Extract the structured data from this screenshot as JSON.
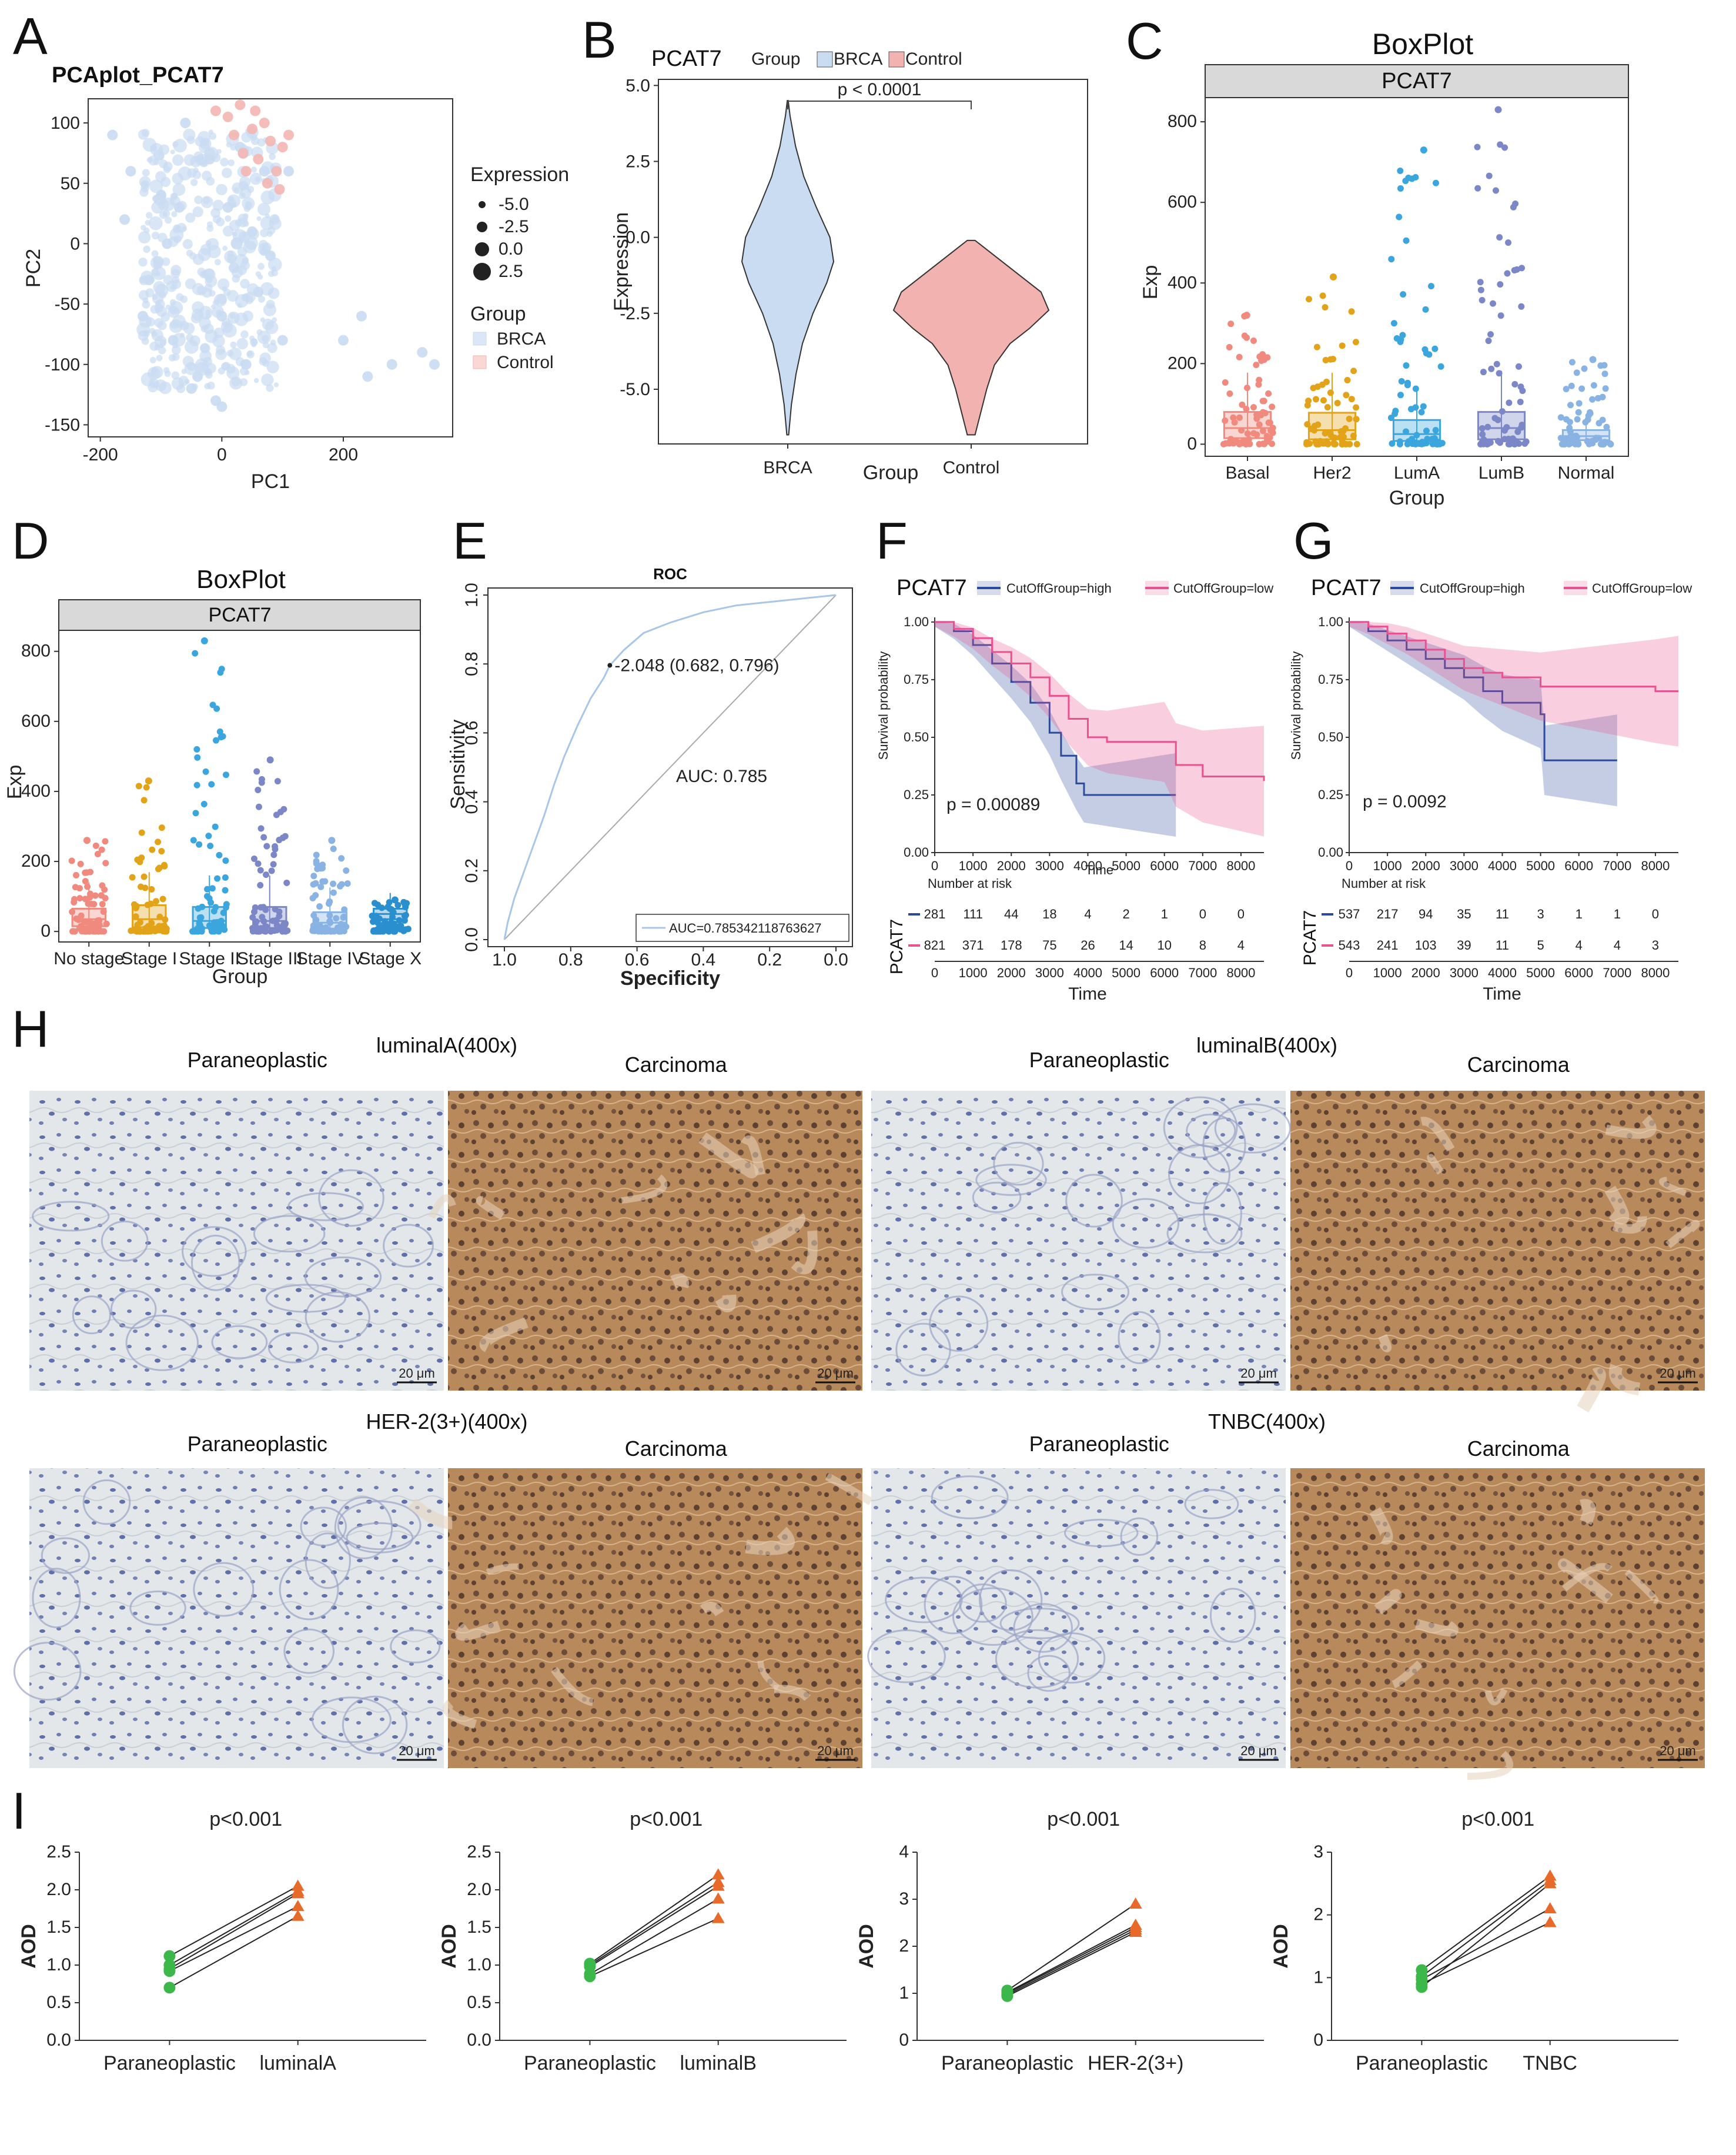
{
  "panel_letters": {
    "A": "A",
    "B": "B",
    "C": "C",
    "D": "D",
    "E": "E",
    "F": "F",
    "G": "G",
    "H": "H",
    "I": "I"
  },
  "chart_data": [
    {
      "id": "A",
      "type": "scatter",
      "title": "PCAplot_PCAT7",
      "xlabel": "PC1",
      "ylabel": "PC2",
      "x_ticks": [
        "-200",
        "0",
        "200"
      ],
      "y_ticks": [
        "100",
        "50",
        "0",
        "-50",
        "-100",
        "-150"
      ],
      "xlim": [
        -220,
        380
      ],
      "ylim": [
        -160,
        120
      ],
      "legend_size_title": "Expression",
      "legend_size_levels": [
        "-5.0",
        "-2.5",
        "0.0",
        "2.5"
      ],
      "legend_group_title": "Group",
      "series": [
        {
          "name": "BRCA",
          "color": "#c9dcf2",
          "points": [
            [
              -180,
              90
            ],
            [
              -150,
              60
            ],
            [
              -120,
              -30
            ],
            [
              -100,
              40
            ],
            [
              -80,
              -80
            ],
            [
              -60,
              100
            ],
            [
              -40,
              -110
            ],
            [
              -20,
              70
            ],
            [
              0,
              -60
            ],
            [
              10,
              30
            ],
            [
              20,
              -20
            ],
            [
              30,
              80
            ],
            [
              40,
              -100
            ],
            [
              50,
              10
            ],
            [
              60,
              -40
            ],
            [
              70,
              60
            ],
            [
              -90,
              0
            ],
            [
              -130,
              -60
            ],
            [
              -160,
              20
            ],
            [
              200,
              -80
            ],
            [
              230,
              -60
            ],
            [
              240,
              -110
            ],
            [
              280,
              -100
            ],
            [
              330,
              -90
            ],
            [
              350,
              -100
            ],
            [
              100,
              -80
            ],
            [
              110,
              60
            ],
            [
              -10,
              -130
            ],
            [
              0,
              -135
            ],
            [
              -50,
              -120
            ],
            [
              80,
              -10
            ],
            [
              -70,
              30
            ]
          ]
        },
        {
          "name": "Control",
          "color": "#f4b6b2",
          "points": [
            [
              -10,
              110
            ],
            [
              10,
              105
            ],
            [
              30,
              115
            ],
            [
              50,
              95
            ],
            [
              60,
              70
            ],
            [
              70,
              100
            ],
            [
              80,
              85
            ],
            [
              90,
              60
            ],
            [
              100,
              80
            ],
            [
              40,
              60
            ],
            [
              20,
              90
            ],
            [
              110,
              90
            ],
            [
              95,
              45
            ],
            [
              75,
              50
            ],
            [
              55,
              110
            ],
            [
              35,
              75
            ]
          ]
        }
      ]
    },
    {
      "id": "B",
      "type": "violin",
      "title": "PCAT7",
      "legend_title": "Group",
      "legend_items": [
        {
          "name": "BRCA",
          "color": "#c9dcf2"
        },
        {
          "name": "Control",
          "color": "#f2b3b0"
        }
      ],
      "xlabel": "Group",
      "ylabel": "Expression",
      "categories": [
        "BRCA",
        "Control"
      ],
      "y_ticks": [
        "5.0",
        "2.5",
        "0.0",
        "-2.5",
        "-5.0"
      ],
      "ylim": [
        -6.8,
        5.2
      ],
      "annotation": "p < 0.0001",
      "violins": [
        {
          "name": "BRCA",
          "color": "#c9dcf2",
          "min": -6.5,
          "max": 4.5,
          "profile": [
            [
              -6.5,
              0.02
            ],
            [
              -5.5,
              0.08
            ],
            [
              -4.5,
              0.18
            ],
            [
              -3.5,
              0.32
            ],
            [
              -2.5,
              0.55
            ],
            [
              -1.5,
              0.85
            ],
            [
              -0.8,
              1.0
            ],
            [
              0,
              0.92
            ],
            [
              1,
              0.62
            ],
            [
              2,
              0.35
            ],
            [
              3,
              0.17
            ],
            [
              4,
              0.05
            ],
            [
              4.5,
              0.01
            ]
          ]
        },
        {
          "name": "Control",
          "color": "#f2b3b0",
          "min": -6.5,
          "max": -0.1,
          "profile": [
            [
              -6.5,
              0.05
            ],
            [
              -5.8,
              0.12
            ],
            [
              -5,
              0.2
            ],
            [
              -4.2,
              0.3
            ],
            [
              -3.5,
              0.5
            ],
            [
              -3,
              0.75
            ],
            [
              -2.4,
              1.0
            ],
            [
              -1.8,
              0.9
            ],
            [
              -1.2,
              0.6
            ],
            [
              -0.6,
              0.3
            ],
            [
              -0.1,
              0.05
            ]
          ]
        }
      ]
    },
    {
      "id": "C",
      "type": "box",
      "title": "BoxPlot",
      "strip": "PCAT7",
      "xlabel": "Group",
      "ylabel": "Exp",
      "categories": [
        "Basal",
        "Her2",
        "LumA",
        "LumB",
        "Normal"
      ],
      "colors": [
        "#f08a7e",
        "#e2a319",
        "#3aa6dd",
        "#7b87c7",
        "#88b3e3"
      ],
      "y_ticks": [
        "800",
        "600",
        "400",
        "200",
        "0"
      ],
      "ylim": [
        -30,
        860
      ],
      "boxes": [
        [
          0,
          15,
          40,
          80,
          320
        ],
        [
          0,
          12,
          35,
          78,
          415
        ],
        [
          0,
          8,
          25,
          60,
          730
        ],
        [
          0,
          12,
          40,
          80,
          830
        ],
        [
          0,
          10,
          20,
          35,
          210
        ]
      ]
    },
    {
      "id": "D",
      "type": "box",
      "title": "BoxPlot",
      "strip": "PCAT7",
      "xlabel": "Group",
      "ylabel": "Exp",
      "categories": [
        "No stage",
        "Stage I",
        "Stage II",
        "Stage III",
        "Stage IV",
        "Stage X"
      ],
      "colors": [
        "#f08a7e",
        "#e2a319",
        "#3aa6dd",
        "#7b87c7",
        "#88b3e3",
        "#2a8fce"
      ],
      "y_ticks": [
        "800",
        "600",
        "400",
        "200",
        "0"
      ],
      "ylim": [
        -30,
        860
      ],
      "boxes": [
        [
          0,
          15,
          35,
          65,
          260
        ],
        [
          0,
          12,
          35,
          75,
          430
        ],
        [
          0,
          10,
          30,
          70,
          830
        ],
        [
          0,
          10,
          30,
          70,
          490
        ],
        [
          0,
          8,
          25,
          55,
          260
        ],
        [
          0,
          35,
          50,
          65,
          90
        ]
      ]
    },
    {
      "id": "E",
      "type": "line",
      "title": "ROC",
      "xlabel": "Specificity",
      "ylabel": "Sensitivity",
      "x_ticks": [
        "1.0",
        "0.8",
        "0.6",
        "0.4",
        "0.2",
        "0.0"
      ],
      "y_ticks": [
        "1.0",
        "0.8",
        "0.6",
        "0.4",
        "0.2",
        "0.0"
      ],
      "xlim": [
        1.05,
        -0.05
      ],
      "ylim": [
        -0.02,
        1.02
      ],
      "auc_text": "AUC: 0.785",
      "legend_text": "AUC=0.785342118763627",
      "point_label": "2.048 (0.682, 0.796)",
      "threshold_point": [
        0.682,
        0.796
      ],
      "roc": [
        [
          1.0,
          0.0
        ],
        [
          0.99,
          0.05
        ],
        [
          0.97,
          0.12
        ],
        [
          0.94,
          0.2
        ],
        [
          0.91,
          0.28
        ],
        [
          0.88,
          0.36
        ],
        [
          0.85,
          0.45
        ],
        [
          0.82,
          0.53
        ],
        [
          0.78,
          0.62
        ],
        [
          0.74,
          0.7
        ],
        [
          0.7,
          0.76
        ],
        [
          0.682,
          0.796
        ],
        [
          0.64,
          0.84
        ],
        [
          0.58,
          0.89
        ],
        [
          0.5,
          0.92
        ],
        [
          0.4,
          0.95
        ],
        [
          0.3,
          0.97
        ],
        [
          0.2,
          0.98
        ],
        [
          0.1,
          0.99
        ],
        [
          0.0,
          1.0
        ]
      ]
    },
    {
      "id": "F",
      "type": "line",
      "title": "PCAT7",
      "legend": [
        "CutOffGroup=high",
        "CutOffGroup=low"
      ],
      "colors": [
        "#2b4a9b",
        "#e9518f"
      ],
      "ylabel": "Survival probability",
      "xlabel": "Time",
      "x_ticks": [
        "0",
        "1000",
        "2000",
        "3000",
        "4000",
        "5000",
        "6000",
        "7000",
        "8000"
      ],
      "y_ticks": [
        "1.00",
        "0.75",
        "0.50",
        "0.25",
        "0.00"
      ],
      "xlim": [
        0,
        8600
      ],
      "ylim": [
        0,
        1.02
      ],
      "pvalue": "p = 0.00089",
      "risk_title": "Number at risk",
      "risk_side_label": "PCAT7",
      "series": [
        {
          "name": "CutOffGroup=high",
          "color": "#2b4a9b",
          "curve": [
            [
              0,
              1.0
            ],
            [
              500,
              0.96
            ],
            [
              1000,
              0.9
            ],
            [
              1500,
              0.82
            ],
            [
              2000,
              0.74
            ],
            [
              2500,
              0.65
            ],
            [
              3000,
              0.52
            ],
            [
              3300,
              0.42
            ],
            [
              3700,
              0.3
            ],
            [
              3900,
              0.25
            ],
            [
              6300,
              0.25
            ]
          ]
        },
        {
          "name": "CutOffGroup=low",
          "color": "#e9518f",
          "curve": [
            [
              0,
              1.0
            ],
            [
              500,
              0.97
            ],
            [
              1000,
              0.93
            ],
            [
              1500,
              0.87
            ],
            [
              2000,
              0.82
            ],
            [
              2500,
              0.76
            ],
            [
              3000,
              0.68
            ],
            [
              3500,
              0.58
            ],
            [
              4000,
              0.5
            ],
            [
              4500,
              0.48
            ],
            [
              6000,
              0.48
            ],
            [
              6300,
              0.38
            ],
            [
              7000,
              0.33
            ],
            [
              8600,
              0.31
            ]
          ]
        }
      ],
      "risk_rows": [
        [
          "281",
          "111",
          "44",
          "18",
          "4",
          "2",
          "1",
          "0",
          "0"
        ],
        [
          "821",
          "371",
          "178",
          "75",
          "26",
          "14",
          "10",
          "8",
          "4"
        ]
      ]
    },
    {
      "id": "G",
      "type": "line",
      "title": "PCAT7",
      "legend": [
        "CutOffGroup=high",
        "CutOffGroup=low"
      ],
      "colors": [
        "#2b4a9b",
        "#e9518f"
      ],
      "ylabel": "Survival probability",
      "xlabel": "Time",
      "x_ticks": [
        "0",
        "1000",
        "2000",
        "3000",
        "4000",
        "5000",
        "6000",
        "7000",
        "8000"
      ],
      "y_ticks": [
        "1.00",
        "0.75",
        "0.50",
        "0.25",
        "0.00"
      ],
      "xlim": [
        0,
        8600
      ],
      "ylim": [
        0,
        1.02
      ],
      "pvalue": "p = 0.0092",
      "risk_title": "Number at risk",
      "risk_side_label": "PCAT7",
      "series": [
        {
          "name": "CutOffGroup=high",
          "color": "#2b4a9b",
          "curve": [
            [
              0,
              1.0
            ],
            [
              500,
              0.96
            ],
            [
              1000,
              0.92
            ],
            [
              1500,
              0.88
            ],
            [
              2000,
              0.84
            ],
            [
              2500,
              0.8
            ],
            [
              3000,
              0.76
            ],
            [
              3500,
              0.7
            ],
            [
              4000,
              0.65
            ],
            [
              5000,
              0.6
            ],
            [
              5100,
              0.4
            ],
            [
              7000,
              0.4
            ]
          ]
        },
        {
          "name": "CutOffGroup=low",
          "color": "#e9518f",
          "curve": [
            [
              0,
              1.0
            ],
            [
              500,
              0.98
            ],
            [
              1000,
              0.95
            ],
            [
              1500,
              0.92
            ],
            [
              2000,
              0.88
            ],
            [
              2500,
              0.84
            ],
            [
              3000,
              0.8
            ],
            [
              3500,
              0.78
            ],
            [
              4000,
              0.76
            ],
            [
              5000,
              0.72
            ],
            [
              8000,
              0.7
            ],
            [
              8600,
              0.7
            ]
          ]
        }
      ],
      "risk_rows": [
        [
          "537",
          "217",
          "94",
          "35",
          "11",
          "3",
          "1",
          "1",
          "0"
        ],
        [
          "543",
          "241",
          "103",
          "39",
          "11",
          "5",
          "4",
          "4",
          "3"
        ]
      ]
    },
    {
      "id": "I1",
      "type": "scatter",
      "title": "p<0.001",
      "ylabel": "AOD",
      "categories": [
        "Paraneoplastic",
        "luminalA"
      ],
      "y_ticks": [
        "2.5",
        "2.0",
        "1.5",
        "1.0",
        "0.5",
        "0.0"
      ],
      "ylim": [
        0,
        2.5
      ],
      "pairs": [
        [
          1.12,
          2.05
        ],
        [
          1.0,
          1.98
        ],
        [
          0.95,
          1.95
        ],
        [
          0.92,
          1.78
        ],
        [
          0.7,
          1.65
        ]
      ]
    },
    {
      "id": "I2",
      "type": "scatter",
      "title": "p<0.001",
      "ylabel": "AOD",
      "categories": [
        "Paraneoplastic",
        "luminalB"
      ],
      "y_ticks": [
        "2.5",
        "2.0",
        "1.5",
        "1.0",
        "0.5",
        "0.0"
      ],
      "ylim": [
        0,
        2.5
      ],
      "pairs": [
        [
          1.02,
          2.2
        ],
        [
          1.0,
          2.1
        ],
        [
          0.98,
          2.05
        ],
        [
          0.88,
          1.88
        ],
        [
          0.85,
          1.62
        ]
      ]
    },
    {
      "id": "I3",
      "type": "scatter",
      "title": "p<0.001",
      "ylabel": "AOD",
      "categories": [
        "Paraneoplastic",
        "HER-2(3+)"
      ],
      "y_ticks": [
        "4",
        "3",
        "2",
        "1",
        "0"
      ],
      "ylim": [
        0,
        4
      ],
      "pairs": [
        [
          1.06,
          2.9
        ],
        [
          1.02,
          2.45
        ],
        [
          1.0,
          2.4
        ],
        [
          0.97,
          2.35
        ],
        [
          0.94,
          2.3
        ]
      ]
    },
    {
      "id": "I4",
      "type": "scatter",
      "title": "p<0.001",
      "ylabel": "AOD",
      "categories": [
        "Paraneoplastic",
        "TNBC"
      ],
      "y_ticks": [
        "3",
        "2",
        "1",
        "0"
      ],
      "ylim": [
        0,
        3
      ],
      "pairs": [
        [
          1.12,
          2.62
        ],
        [
          1.02,
          2.55
        ],
        [
          0.97,
          2.1
        ],
        [
          0.9,
          1.88
        ],
        [
          0.85,
          2.5
        ]
      ]
    }
  ],
  "histology": {
    "groups": [
      {
        "title": "luminalA(400x)",
        "left": "Paraneoplastic",
        "right": "Carcinoma"
      },
      {
        "title": "luminalB(400x)",
        "left": "Paraneoplastic",
        "right": "Carcinoma"
      },
      {
        "title": "HER-2(3+)(400x)",
        "left": "Paraneoplastic",
        "right": "Carcinoma"
      },
      {
        "title": "TNBC(400x)",
        "left": "Paraneoplastic",
        "right": "Carcinoma"
      }
    ],
    "scale_bar": "20 μm",
    "colors": {
      "para_bg": "#e3e7ea",
      "para_cell": "#5f6fa8",
      "carc_bg": "#b8895a",
      "carc_cell": "#6b4c3a"
    }
  }
}
